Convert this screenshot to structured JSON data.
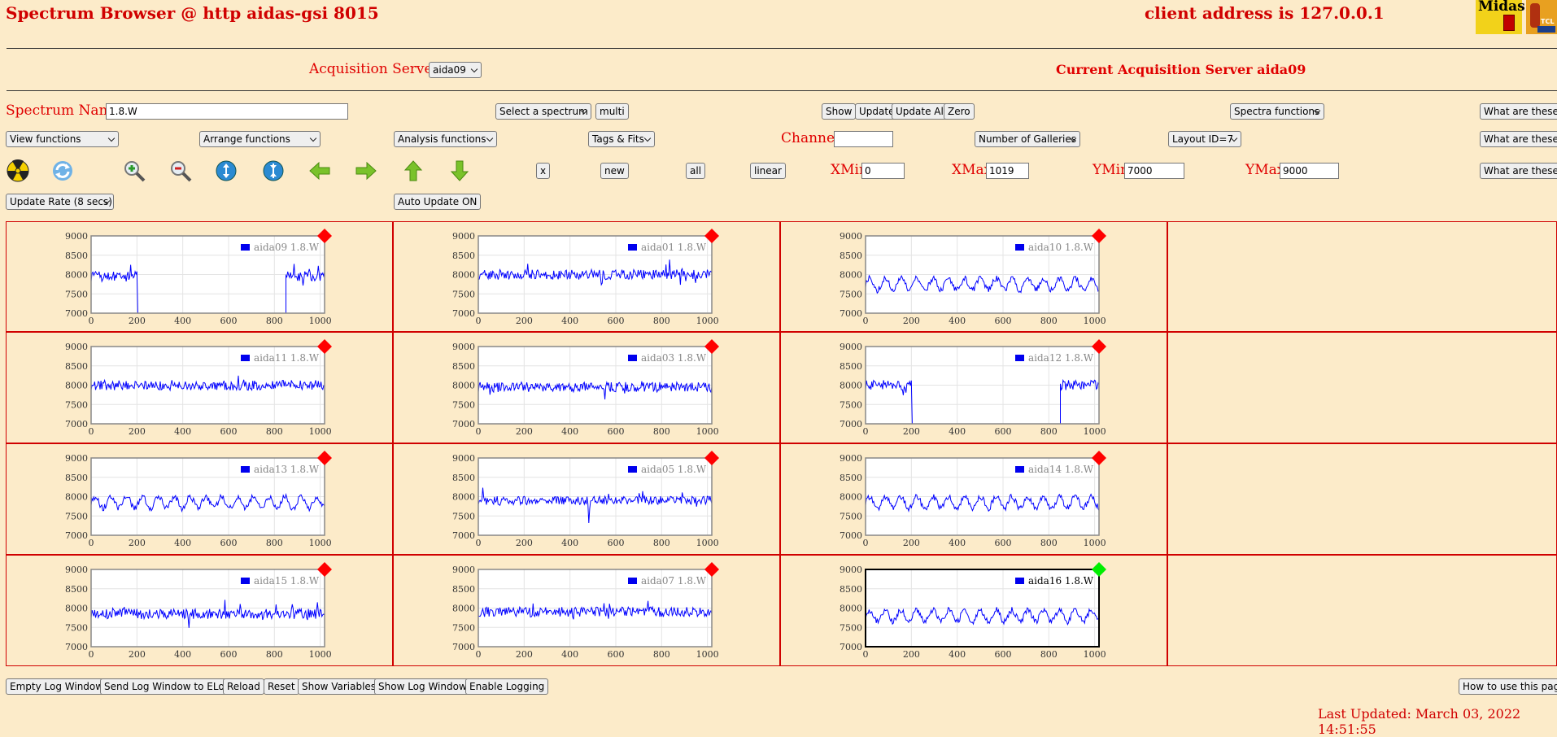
{
  "header": {
    "title": "Spectrum Browser @ http aidas-gsi 8015",
    "client": "client address is 127.0.0.1",
    "logo_midas": "Midas",
    "logo_tcl": "TCL"
  },
  "servers": {
    "label": "Acquisition Servers",
    "selected": "aida09",
    "current": "Current Acquisition Server aida09"
  },
  "row1": {
    "spectrum_label": "Spectrum Name:",
    "spectrum_value": "1.8.W",
    "select_spectrum": "Select a spectrum",
    "multi": "multi",
    "show": "Show",
    "update": "Update",
    "update_all": "Update All",
    "zero": "Zero",
    "spectra_functions": "Spectra functions",
    "what": "What are these?"
  },
  "row2": {
    "view": "View functions",
    "arrange": "Arrange functions",
    "analysis": "Analysis functions",
    "tags": "Tags & Fits",
    "channel_label": "Channel:",
    "channel_value": "",
    "galleries": "Number of Galleries",
    "layout": "Layout ID=7",
    "what": "What are these?"
  },
  "row3": {
    "icons": [
      "radiation-icon",
      "refresh-icon",
      "zoom-in-icon",
      "zoom-out-icon",
      "expand-icon",
      "compress-icon",
      "arrow-left-icon",
      "arrow-right-icon",
      "arrow-up-icon",
      "arrow-down-icon"
    ],
    "x": "x",
    "new": "new",
    "all": "all",
    "linear": "linear",
    "xmin_label": "XMin",
    "xmin": "0",
    "xmax_label": "XMax",
    "xmax": "1019",
    "ymin_label": "YMin",
    "ymin": "7000",
    "ymax_label": "YMax",
    "ymax": "9000",
    "what": "What are these?"
  },
  "row4": {
    "update_rate": "Update Rate (8 secs)",
    "auto_update": "Auto Update ON"
  },
  "bottom": {
    "buttons": [
      "Empty Log Window",
      "Send Log Window to ELog",
      "Reload",
      "Reset",
      "Show Variables",
      "Show Log Window",
      "Enable Logging"
    ],
    "help": "How to use this page",
    "last_updated": "Last Updated: March 03, 2022 14:51:55"
  },
  "colors": {
    "accent": "#e00000",
    "plot_line": "#0000ff",
    "marker_off": "#ff0000",
    "marker_on": "#00ee00"
  },
  "chart_data": [
    {
      "type": "line",
      "series": [
        {
          "name": "aida09 1.8.W"
        }
      ],
      "xlim": [
        0,
        1019
      ],
      "ylim": [
        7000,
        9000
      ],
      "xticks": [
        0,
        200,
        400,
        600,
        800,
        1000
      ],
      "yticks": [
        7000,
        7500,
        8000,
        8500,
        9000
      ],
      "pattern": "gap",
      "level": 7950,
      "active": false
    },
    {
      "type": "line",
      "series": [
        {
          "name": "aida01 1.8.W"
        }
      ],
      "xlim": [
        0,
        1019
      ],
      "ylim": [
        7000,
        9000
      ],
      "xticks": [
        0,
        200,
        400,
        600,
        800,
        1000
      ],
      "yticks": [
        7000,
        7500,
        8000,
        8500,
        9000
      ],
      "pattern": "noise",
      "level": 8000,
      "active": false
    },
    {
      "type": "line",
      "series": [
        {
          "name": "aida10 1.8.W"
        }
      ],
      "xlim": [
        0,
        1019
      ],
      "ylim": [
        7000,
        9000
      ],
      "xticks": [
        0,
        200,
        400,
        600,
        800,
        1000
      ],
      "yticks": [
        7000,
        7500,
        8000,
        8500,
        9000
      ],
      "pattern": "wave",
      "level": 7750,
      "active": false
    },
    {
      "type": "line",
      "series": [
        {
          "name": "aida11 1.8.W"
        }
      ],
      "xlim": [
        0,
        1019
      ],
      "ylim": [
        7000,
        9000
      ],
      "xticks": [
        0,
        200,
        400,
        600,
        800,
        1000
      ],
      "yticks": [
        7000,
        7500,
        8000,
        8500,
        9000
      ],
      "pattern": "noise",
      "level": 8000,
      "active": false
    },
    {
      "type": "line",
      "series": [
        {
          "name": "aida03 1.8.W"
        }
      ],
      "xlim": [
        0,
        1019
      ],
      "ylim": [
        7000,
        9000
      ],
      "xticks": [
        0,
        200,
        400,
        600,
        800,
        1000
      ],
      "yticks": [
        7000,
        7500,
        8000,
        8500,
        9000
      ],
      "pattern": "noise",
      "level": 7950,
      "active": false
    },
    {
      "type": "line",
      "series": [
        {
          "name": "aida12 1.8.W"
        }
      ],
      "xlim": [
        0,
        1019
      ],
      "ylim": [
        7000,
        9000
      ],
      "xticks": [
        0,
        200,
        400,
        600,
        800,
        1000
      ],
      "yticks": [
        7000,
        7500,
        8000,
        8500,
        9000
      ],
      "pattern": "gap",
      "level": 8000,
      "active": false
    },
    {
      "type": "line",
      "series": [
        {
          "name": "aida13 1.8.W"
        }
      ],
      "xlim": [
        0,
        1019
      ],
      "ylim": [
        7000,
        9000
      ],
      "xticks": [
        0,
        200,
        400,
        600,
        800,
        1000
      ],
      "yticks": [
        7000,
        7500,
        8000,
        8500,
        9000
      ],
      "pattern": "wave",
      "level": 7850,
      "active": false
    },
    {
      "type": "line",
      "series": [
        {
          "name": "aida05 1.8.W"
        }
      ],
      "xlim": [
        0,
        1019
      ],
      "ylim": [
        7000,
        9000
      ],
      "xticks": [
        0,
        200,
        400,
        600,
        800,
        1000
      ],
      "yticks": [
        7000,
        7500,
        8000,
        8500,
        9000
      ],
      "pattern": "spiky",
      "level": 7900,
      "active": false
    },
    {
      "type": "line",
      "series": [
        {
          "name": "aida14 1.8.W"
        }
      ],
      "xlim": [
        0,
        1019
      ],
      "ylim": [
        7000,
        9000
      ],
      "xticks": [
        0,
        200,
        400,
        600,
        800,
        1000
      ],
      "yticks": [
        7000,
        7500,
        8000,
        8500,
        9000
      ],
      "pattern": "wave",
      "level": 7850,
      "active": false
    },
    {
      "type": "line",
      "series": [
        {
          "name": "aida15 1.8.W"
        }
      ],
      "xlim": [
        0,
        1019
      ],
      "ylim": [
        7000,
        9000
      ],
      "xticks": [
        0,
        200,
        400,
        600,
        800,
        1000
      ],
      "yticks": [
        7000,
        7500,
        8000,
        8500,
        9000
      ],
      "pattern": "noise",
      "level": 7850,
      "active": false
    },
    {
      "type": "line",
      "series": [
        {
          "name": "aida07 1.8.W"
        }
      ],
      "xlim": [
        0,
        1019
      ],
      "ylim": [
        7000,
        9000
      ],
      "xticks": [
        0,
        200,
        400,
        600,
        800,
        1000
      ],
      "yticks": [
        7000,
        7500,
        8000,
        8500,
        9000
      ],
      "pattern": "noise",
      "level": 7900,
      "active": false
    },
    {
      "type": "line",
      "series": [
        {
          "name": "aida16 1.8.W"
        }
      ],
      "xlim": [
        0,
        1019
      ],
      "ylim": [
        7000,
        9000
      ],
      "xticks": [
        0,
        200,
        400,
        600,
        800,
        1000
      ],
      "yticks": [
        7000,
        7500,
        8000,
        8500,
        9000
      ],
      "pattern": "wave",
      "level": 7800,
      "active": true
    }
  ]
}
